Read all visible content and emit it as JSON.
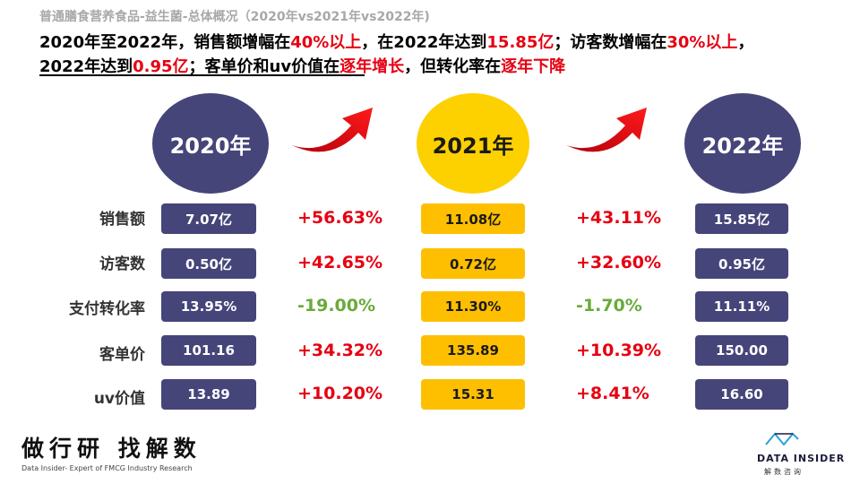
{
  "title": {
    "subtitle": "普通膳食营养食品-益生菌-总体概况（2020年vs2021年vs2022年)",
    "line1": [
      {
        "text": "2020年至2022年，销售额增幅在",
        "highlight": false
      },
      {
        "text": "40%以上",
        "highlight": true
      },
      {
        "text": "，在2022年达到",
        "highlight": false
      },
      {
        "text": "15.85亿",
        "highlight": true
      },
      {
        "text": "；访客数增幅在",
        "highlight": false
      },
      {
        "text": "30%以上",
        "highlight": true
      },
      {
        "text": "，",
        "highlight": false
      }
    ],
    "line2": [
      {
        "text": "2022年达到",
        "highlight": false
      },
      {
        "text": "0.95亿",
        "highlight": true
      },
      {
        "text": "；客单价和uv价值在",
        "highlight": false
      },
      {
        "text": "逐年增长",
        "highlight": true
      },
      {
        "text": "，但转化率在",
        "highlight": false
      },
      {
        "text": "逐年下降",
        "highlight": true
      }
    ]
  },
  "years": {
    "y2020": "2020年",
    "y2021": "2021年",
    "y2022": "2022年"
  },
  "colors": {
    "navy": "#45457a",
    "gold": "#fdbf00",
    "red": "#e60012",
    "green": "#6aaa3a"
  },
  "metrics": [
    {
      "label": "销售额",
      "v2020": "7.07亿",
      "chg1": "+56.63%",
      "v2021": "11.08亿",
      "chg2": "+43.11%",
      "v2022": "15.85亿"
    },
    {
      "label": "访客数",
      "v2020": "0.50亿",
      "chg1": "+42.65%",
      "v2021": "0.72亿",
      "chg2": "+32.60%",
      "v2022": "0.95亿"
    },
    {
      "label": "支付转化率",
      "v2020": "13.95%",
      "chg1": "-19.00%",
      "v2021": "11.30%",
      "chg2": "-1.70%",
      "v2022": "11.11%"
    },
    {
      "label": "客单价",
      "v2020": "101.16",
      "chg1": "+34.32%",
      "v2021": "135.89",
      "chg2": "+10.39%",
      "v2022": "150.00"
    },
    {
      "label": "uv价值",
      "v2020": "13.89",
      "chg1": "+10.20%",
      "v2021": "15.31",
      "chg2": "+8.41%",
      "v2022": "16.60"
    }
  ],
  "footer": {
    "left_cn": "做行研 找解数",
    "left_en": "Data Insider- Expert of FMCG Industry Research",
    "brand": "DATA INSIDER",
    "brand_cn": "解数咨询"
  }
}
